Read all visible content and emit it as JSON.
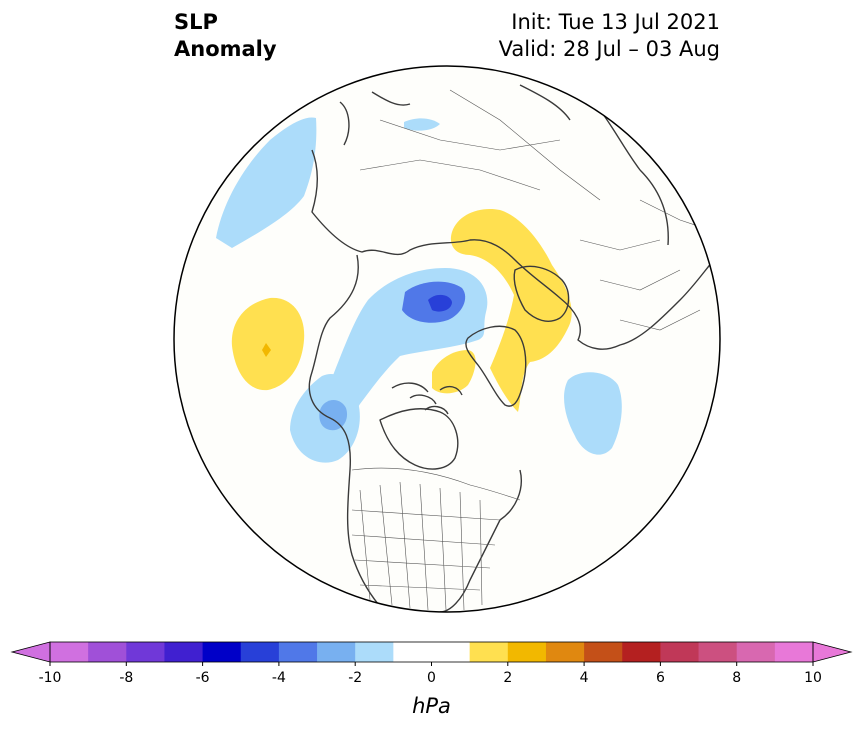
{
  "title": {
    "variable_line1": "SLP",
    "variable_line2": "Anomaly",
    "init": "Init: Tue 13 Jul 2021",
    "valid": "Valid: 28 Jul – 03 Aug"
  },
  "map": {
    "projection": "north polar stereographic",
    "region": "Northern Hemisphere (North America centered)",
    "anomaly_features": [
      {
        "name": "Arctic Ocean low",
        "sign": "negative",
        "min_hpa": -4
      },
      {
        "name": "North Pacific high",
        "sign": "positive",
        "max_hpa": 3
      },
      {
        "name": "Gulf of Alaska low",
        "sign": "negative",
        "min_hpa": -3
      },
      {
        "name": "Siberia high",
        "sign": "positive",
        "max_hpa": 2
      },
      {
        "name": "Scandinavia / Barents high",
        "sign": "positive",
        "max_hpa": 2
      },
      {
        "name": "Baffin Bay high",
        "sign": "positive",
        "max_hpa": 2
      },
      {
        "name": "North Atlantic low",
        "sign": "negative",
        "min_hpa": -2
      },
      {
        "name": "Western Pacific low",
        "sign": "negative",
        "min_hpa": -2
      }
    ]
  },
  "colorbar": {
    "units": "hPa",
    "tick_labels": [
      "-10",
      "-8",
      "-6",
      "-4",
      "-2",
      "0",
      "2",
      "4",
      "6",
      "8",
      "10"
    ],
    "levels": [
      -10,
      -9,
      -8,
      -7,
      -6,
      -5,
      -4,
      -3,
      -2,
      -1,
      1,
      2,
      3,
      4,
      5,
      6,
      7,
      8,
      9,
      10
    ],
    "colors": [
      "#d070e0",
      "#a050d8",
      "#7038d8",
      "#4020d0",
      "#0000c8",
      "#2840d8",
      "#5078e8",
      "#78b0f0",
      "#acdcfa",
      "#ffffff",
      "#ffffff",
      "#ffe050",
      "#f2b800",
      "#e08810",
      "#c45018",
      "#b42020",
      "#c03858",
      "#cc5080",
      "#d868b0",
      "#e878d8"
    ],
    "extend_low": "#d070e0",
    "extend_high": "#e878d8"
  }
}
